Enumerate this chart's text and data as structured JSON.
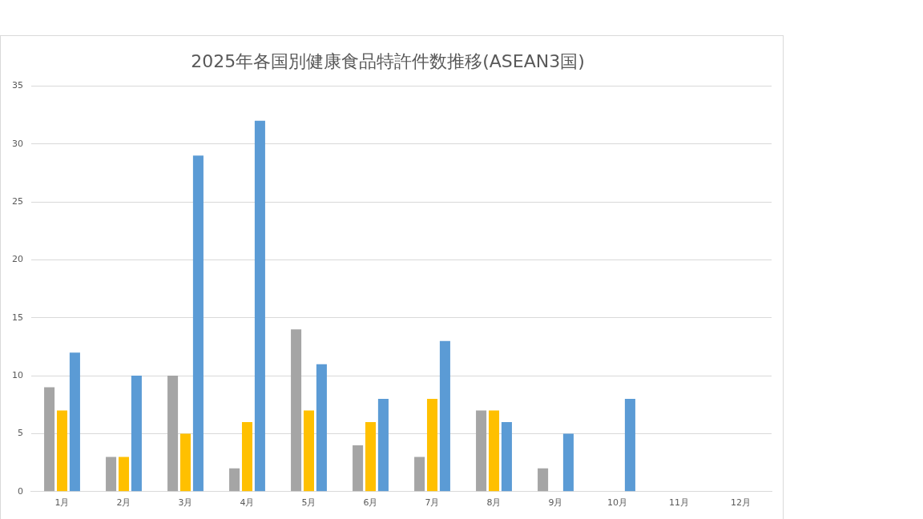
{
  "chart_data": {
    "type": "bar",
    "title": "2025年各国別健康食品特許件数推移(ASEAN3国)",
    "categories": [
      "1月",
      "2月",
      "3月",
      "4月",
      "5月",
      "6月",
      "7月",
      "8月",
      "9月",
      "10月",
      "11月",
      "12月"
    ],
    "series": [
      {
        "color": "#a5a5a5",
        "values": [
          9,
          3,
          10,
          2,
          14,
          4,
          3,
          7,
          2,
          0,
          0,
          0
        ]
      },
      {
        "color": "#ffc000",
        "values": [
          7,
          3,
          5,
          6,
          7,
          6,
          8,
          7,
          0,
          0,
          0,
          0
        ]
      },
      {
        "color": "#5b9bd5",
        "values": [
          12,
          10,
          29,
          32,
          11,
          8,
          13,
          6,
          5,
          8,
          0,
          0
        ]
      }
    ],
    "ylim": [
      0,
      35
    ],
    "yticks": [
      0,
      5,
      10,
      15,
      20,
      25,
      30,
      35
    ],
    "grid": "y",
    "legend": false
  }
}
